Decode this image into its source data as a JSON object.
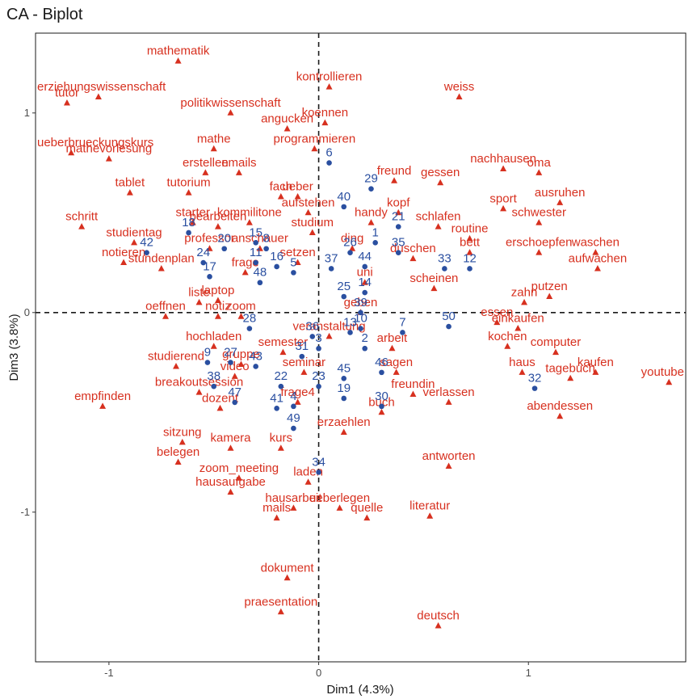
{
  "chart_data": {
    "type": "scatter",
    "title": "CA - Biplot",
    "xlabel": "Dim1 (4.3%)",
    "ylabel": "Dim3 (3.8%)",
    "xlim": [
      -1.35,
      1.75
    ],
    "ylim": [
      -1.75,
      1.4
    ],
    "xticks": [
      -1,
      0,
      1
    ],
    "yticks": [
      -1,
      0,
      1
    ],
    "grid": false,
    "reference_lines": "dashed at x=0 and y=0",
    "colors": {
      "words": "#d7301f",
      "documents": "#2a4fa0",
      "axis": "#1a1a1a"
    },
    "series": [
      {
        "marker": "triangle",
        "color": "#d7301f",
        "points": [
          {
            "label": "mathematik",
            "x": -0.67,
            "y": 1.26
          },
          {
            "label": "erziehungswissenschaft",
            "x": -1.05,
            "y": 1.08
          },
          {
            "label": "kontrollieren",
            "x": 0.05,
            "y": 1.13
          },
          {
            "label": "tutor",
            "x": -1.2,
            "y": 1.05
          },
          {
            "label": "politikwissenschaft",
            "x": -0.42,
            "y": 1.0
          },
          {
            "label": "weiss",
            "x": 0.67,
            "y": 1.08
          },
          {
            "label": "ueberbrueckungskurs",
            "x": -1.18,
            "y": 0.8
          },
          {
            "label": "koennen",
            "x": 0.03,
            "y": 0.95
          },
          {
            "label": "angucken",
            "x": -0.15,
            "y": 0.92
          },
          {
            "label": "mathe",
            "x": -0.5,
            "y": 0.82
          },
          {
            "label": "programmieren",
            "x": -0.02,
            "y": 0.82
          },
          {
            "label": "nachhausen",
            "x": 0.88,
            "y": 0.72
          },
          {
            "label": "erstellen",
            "x": -0.54,
            "y": 0.7
          },
          {
            "label": "emails",
            "x": -0.38,
            "y": 0.7
          },
          {
            "label": "mathevorlesung",
            "x": -1.0,
            "y": 0.77
          },
          {
            "label": "freund",
            "x": 0.36,
            "y": 0.66
          },
          {
            "label": "gessen",
            "x": 0.58,
            "y": 0.65
          },
          {
            "label": "oma",
            "x": 1.05,
            "y": 0.7
          },
          {
            "label": "tablet",
            "x": -0.9,
            "y": 0.6
          },
          {
            "label": "tutorium",
            "x": -0.62,
            "y": 0.6
          },
          {
            "label": "fach",
            "x": -0.18,
            "y": 0.58
          },
          {
            "label": "ueber",
            "x": -0.1,
            "y": 0.58
          },
          {
            "label": "kopf",
            "x": 0.38,
            "y": 0.5
          },
          {
            "label": "sport",
            "x": 0.88,
            "y": 0.52
          },
          {
            "label": "ausruhen",
            "x": 1.15,
            "y": 0.55
          },
          {
            "label": "aufstehen",
            "x": -0.05,
            "y": 0.5
          },
          {
            "label": "handy",
            "x": 0.25,
            "y": 0.45
          },
          {
            "label": "schwester",
            "x": 1.05,
            "y": 0.45
          },
          {
            "label": "starter",
            "x": -0.6,
            "y": 0.45
          },
          {
            "label": "kommilitone",
            "x": -0.33,
            "y": 0.45
          },
          {
            "label": "bearbeiten",
            "x": -0.48,
            "y": 0.43
          },
          {
            "label": "schritt",
            "x": -1.13,
            "y": 0.43
          },
          {
            "label": "studium",
            "x": -0.03,
            "y": 0.4
          },
          {
            "label": "schlafen",
            "x": 0.57,
            "y": 0.43
          },
          {
            "label": "routine",
            "x": 0.72,
            "y": 0.37
          },
          {
            "label": "waschen",
            "x": 1.32,
            "y": 0.3
          },
          {
            "label": "studientag",
            "x": -0.88,
            "y": 0.35
          },
          {
            "label": "professor",
            "x": -0.52,
            "y": 0.32
          },
          {
            "label": "anschauer",
            "x": -0.28,
            "y": 0.32
          },
          {
            "label": "ding",
            "x": 0.16,
            "y": 0.32
          },
          {
            "label": "bett",
            "x": 0.72,
            "y": 0.3
          },
          {
            "label": "notieren",
            "x": -0.93,
            "y": 0.25
          },
          {
            "label": "duschen",
            "x": 0.45,
            "y": 0.27
          },
          {
            "label": "erschoepfen",
            "x": 1.05,
            "y": 0.3
          },
          {
            "label": "setzen",
            "x": -0.1,
            "y": 0.25
          },
          {
            "label": "stundenplan",
            "x": -0.75,
            "y": 0.22
          },
          {
            "label": "frage",
            "x": -0.35,
            "y": 0.2
          },
          {
            "label": "aufwachen",
            "x": 1.33,
            "y": 0.22
          },
          {
            "label": "uni",
            "x": 0.22,
            "y": 0.15
          },
          {
            "label": "scheinen",
            "x": 0.55,
            "y": 0.12
          },
          {
            "label": "putzen",
            "x": 1.1,
            "y": 0.08
          },
          {
            "label": "liste",
            "x": -0.57,
            "y": 0.05
          },
          {
            "label": "laptop",
            "x": -0.48,
            "y": 0.06
          },
          {
            "label": "zahn",
            "x": 0.98,
            "y": 0.05
          },
          {
            "label": "geben",
            "x": 0.2,
            "y": 0.0
          },
          {
            "label": "essen",
            "x": 0.85,
            "y": -0.05
          },
          {
            "label": "oeffnen",
            "x": -0.73,
            "y": -0.02
          },
          {
            "label": "notiz",
            "x": -0.48,
            "y": -0.02
          },
          {
            "label": "zoom",
            "x": -0.37,
            "y": -0.02
          },
          {
            "label": "einkaufen",
            "x": 0.95,
            "y": -0.08
          },
          {
            "label": "veranstaltung",
            "x": 0.05,
            "y": -0.12
          },
          {
            "label": "arbeit",
            "x": 0.35,
            "y": -0.18
          },
          {
            "label": "hochladen",
            "x": -0.5,
            "y": -0.17
          },
          {
            "label": "kochen",
            "x": 0.9,
            "y": -0.17
          },
          {
            "label": "computer",
            "x": 1.13,
            "y": -0.2
          },
          {
            "label": "semester",
            "x": -0.17,
            "y": -0.2
          },
          {
            "label": "studierend",
            "x": -0.68,
            "y": -0.27
          },
          {
            "label": "gruppe",
            "x": -0.37,
            "y": -0.26
          },
          {
            "label": "video",
            "x": -0.4,
            "y": -0.32
          },
          {
            "label": "seminar",
            "x": -0.07,
            "y": -0.3
          },
          {
            "label": "sagen",
            "x": 0.37,
            "y": -0.3
          },
          {
            "label": "haus",
            "x": 0.97,
            "y": -0.3
          },
          {
            "label": "kaufen",
            "x": 1.32,
            "y": -0.3
          },
          {
            "label": "tagebuch",
            "x": 1.2,
            "y": -0.33
          },
          {
            "label": "youtube",
            "x": 1.67,
            "y": -0.35
          },
          {
            "label": "breakoutsession",
            "x": -0.57,
            "y": -0.4
          },
          {
            "label": "empfinden",
            "x": -1.03,
            "y": -0.47
          },
          {
            "label": "freundin",
            "x": 0.45,
            "y": -0.41
          },
          {
            "label": "dozent",
            "x": -0.47,
            "y": -0.48
          },
          {
            "label": "frage4",
            "x": -0.1,
            "y": -0.45
          },
          {
            "label": "verlassen",
            "x": 0.62,
            "y": -0.45
          },
          {
            "label": "buch",
            "x": 0.3,
            "y": -0.5
          },
          {
            "label": "abendessen",
            "x": 1.15,
            "y": -0.52
          },
          {
            "label": "sitzung",
            "x": -0.65,
            "y": -0.65
          },
          {
            "label": "erzaehlen",
            "x": 0.12,
            "y": -0.6
          },
          {
            "label": "belegen",
            "x": -0.67,
            "y": -0.75
          },
          {
            "label": "kamera",
            "x": -0.42,
            "y": -0.68
          },
          {
            "label": "kurs",
            "x": -0.18,
            "y": -0.68
          },
          {
            "label": "antworten",
            "x": 0.62,
            "y": -0.77
          },
          {
            "label": "zoom_meeting",
            "x": -0.38,
            "y": -0.83
          },
          {
            "label": "laden",
            "x": -0.05,
            "y": -0.85
          },
          {
            "label": "hausaufgabe",
            "x": -0.42,
            "y": -0.9
          },
          {
            "label": "hausarbeit",
            "x": -0.12,
            "y": -0.98
          },
          {
            "label": "ueberlegen",
            "x": 0.1,
            "y": -0.98
          },
          {
            "label": "literatur",
            "x": 0.53,
            "y": -1.02
          },
          {
            "label": "mails",
            "x": -0.2,
            "y": -1.03
          },
          {
            "label": "quelle",
            "x": 0.23,
            "y": -1.03
          },
          {
            "label": "dokument",
            "x": -0.15,
            "y": -1.33
          },
          {
            "label": "praesentation",
            "x": -0.18,
            "y": -1.5
          },
          {
            "label": "deutsch",
            "x": 0.57,
            "y": -1.57
          }
        ]
      },
      {
        "marker": "circle",
        "color": "#2a4fa0",
        "points": [
          {
            "label": "6",
            "x": 0.05,
            "y": 0.75
          },
          {
            "label": "29",
            "x": 0.25,
            "y": 0.62
          },
          {
            "label": "40",
            "x": 0.12,
            "y": 0.53
          },
          {
            "label": "21",
            "x": 0.38,
            "y": 0.43
          },
          {
            "label": "18",
            "x": -0.62,
            "y": 0.4
          },
          {
            "label": "20",
            "x": -0.45,
            "y": 0.32
          },
          {
            "label": "15",
            "x": -0.3,
            "y": 0.35
          },
          {
            "label": "42",
            "x": -0.82,
            "y": 0.3
          },
          {
            "label": "26",
            "x": 0.15,
            "y": 0.3
          },
          {
            "label": "1",
            "x": 0.27,
            "y": 0.35
          },
          {
            "label": "8",
            "x": -0.25,
            "y": 0.32
          },
          {
            "label": "33",
            "x": 0.6,
            "y": 0.22
          },
          {
            "label": "24",
            "x": -0.55,
            "y": 0.25
          },
          {
            "label": "37",
            "x": 0.06,
            "y": 0.22
          },
          {
            "label": "44",
            "x": 0.22,
            "y": 0.23
          },
          {
            "label": "35",
            "x": 0.38,
            "y": 0.3
          },
          {
            "label": "16",
            "x": -0.2,
            "y": 0.23
          },
          {
            "label": "11",
            "x": -0.3,
            "y": 0.25
          },
          {
            "label": "17",
            "x": -0.52,
            "y": 0.18
          },
          {
            "label": "12",
            "x": 0.72,
            "y": 0.22
          },
          {
            "label": "5",
            "x": -0.12,
            "y": 0.2
          },
          {
            "label": "48",
            "x": -0.28,
            "y": 0.15
          },
          {
            "label": "25",
            "x": 0.12,
            "y": 0.08
          },
          {
            "label": "14",
            "x": 0.22,
            "y": 0.1
          },
          {
            "label": "39",
            "x": 0.2,
            "y": 0.0
          },
          {
            "label": "10",
            "x": 0.2,
            "y": -0.08
          },
          {
            "label": "50",
            "x": 0.62,
            "y": -0.07
          },
          {
            "label": "28",
            "x": -0.33,
            "y": -0.08
          },
          {
            "label": "13",
            "x": 0.15,
            "y": -0.1
          },
          {
            "label": "36",
            "x": -0.03,
            "y": -0.12
          },
          {
            "label": "7",
            "x": 0.4,
            "y": -0.1
          },
          {
            "label": "3",
            "x": 0.0,
            "y": -0.18
          },
          {
            "label": "2",
            "x": 0.22,
            "y": -0.18
          },
          {
            "label": "31",
            "x": -0.08,
            "y": -0.22
          },
          {
            "label": "9",
            "x": -0.53,
            "y": -0.25
          },
          {
            "label": "27",
            "x": -0.42,
            "y": -0.25
          },
          {
            "label": "43",
            "x": -0.3,
            "y": -0.27
          },
          {
            "label": "46",
            "x": 0.3,
            "y": -0.3
          },
          {
            "label": "45",
            "x": 0.12,
            "y": -0.33
          },
          {
            "label": "38",
            "x": -0.5,
            "y": -0.37
          },
          {
            "label": "22",
            "x": -0.18,
            "y": -0.37
          },
          {
            "label": "23",
            "x": 0.0,
            "y": -0.37
          },
          {
            "label": "32",
            "x": 1.03,
            "y": -0.38
          },
          {
            "label": "47",
            "x": -0.4,
            "y": -0.45
          },
          {
            "label": "41",
            "x": -0.2,
            "y": -0.48
          },
          {
            "label": "4",
            "x": -0.12,
            "y": -0.47
          },
          {
            "label": "19",
            "x": 0.12,
            "y": -0.43
          },
          {
            "label": "30",
            "x": 0.3,
            "y": -0.47
          },
          {
            "label": "49",
            "x": -0.12,
            "y": -0.58
          },
          {
            "label": "34",
            "x": 0.0,
            "y": -0.8
          }
        ]
      }
    ]
  }
}
